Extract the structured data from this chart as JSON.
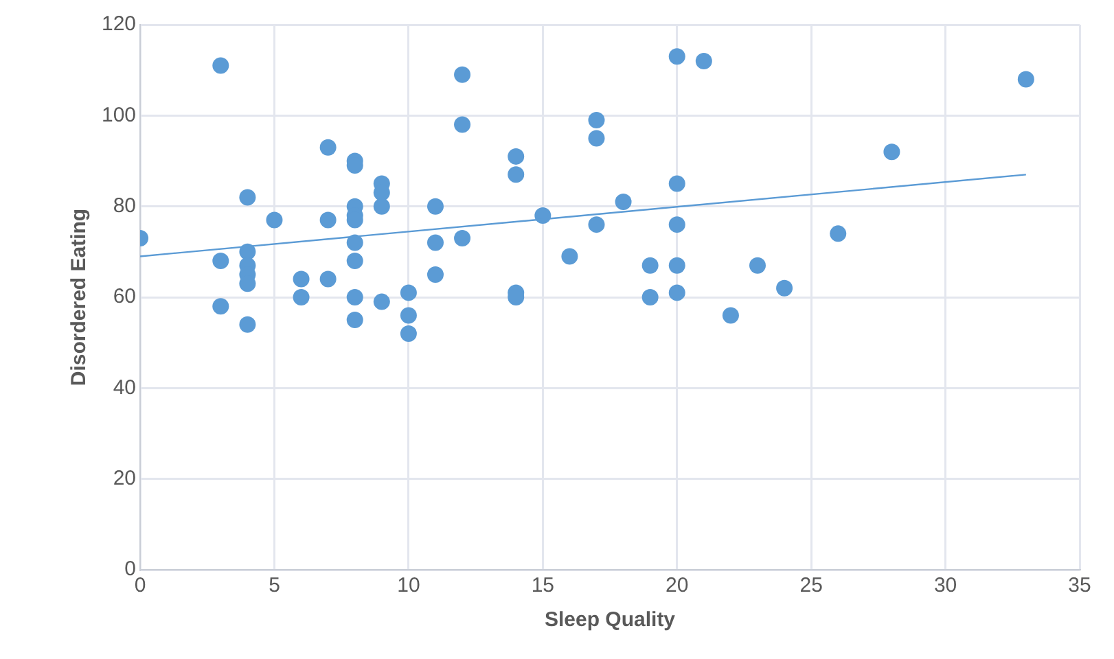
{
  "chart_data": {
    "type": "scatter",
    "xlabel": "Sleep Quality",
    "ylabel": "Disordered Eating",
    "xlim": [
      0,
      35
    ],
    "xticks": [
      0,
      5,
      10,
      15,
      20,
      25,
      30,
      35
    ],
    "ylim": [
      0,
      120
    ],
    "yticks": [
      0,
      20,
      40,
      60,
      80,
      100,
      120
    ],
    "grid": true,
    "legend": false,
    "series": [
      {
        "marker": "circle",
        "color": "#5b9bd5",
        "x": [
          0,
          3,
          3,
          3,
          4,
          4,
          4,
          4,
          4,
          4,
          5,
          6,
          6,
          7,
          7,
          7,
          8,
          8,
          8,
          8,
          8,
          8,
          8,
          8,
          8,
          9,
          9,
          9,
          9,
          10,
          10,
          10,
          11,
          11,
          11,
          12,
          12,
          12,
          14,
          14,
          14,
          14,
          15,
          16,
          17,
          17,
          17,
          18,
          19,
          19,
          20,
          20,
          20,
          20,
          20,
          21,
          22,
          23,
          24,
          26,
          28,
          33
        ],
        "values": [
          73,
          111,
          68,
          58,
          82,
          70,
          67,
          65,
          63,
          54,
          77,
          64,
          60,
          93,
          77,
          64,
          90,
          89,
          80,
          78,
          77,
          72,
          68,
          60,
          55,
          85,
          83,
          80,
          59,
          61,
          56,
          52,
          80,
          72,
          65,
          109,
          98,
          73,
          91,
          87,
          61,
          60,
          78,
          69,
          99,
          95,
          76,
          81,
          67,
          60,
          113,
          85,
          76,
          67,
          61,
          112,
          56,
          67,
          62,
          74,
          92,
          108
        ]
      },
      {
        "type": "line",
        "marker": "none",
        "color": "#5b9bd5",
        "x": [
          0,
          33
        ],
        "values": [
          69,
          87
        ]
      }
    ]
  }
}
